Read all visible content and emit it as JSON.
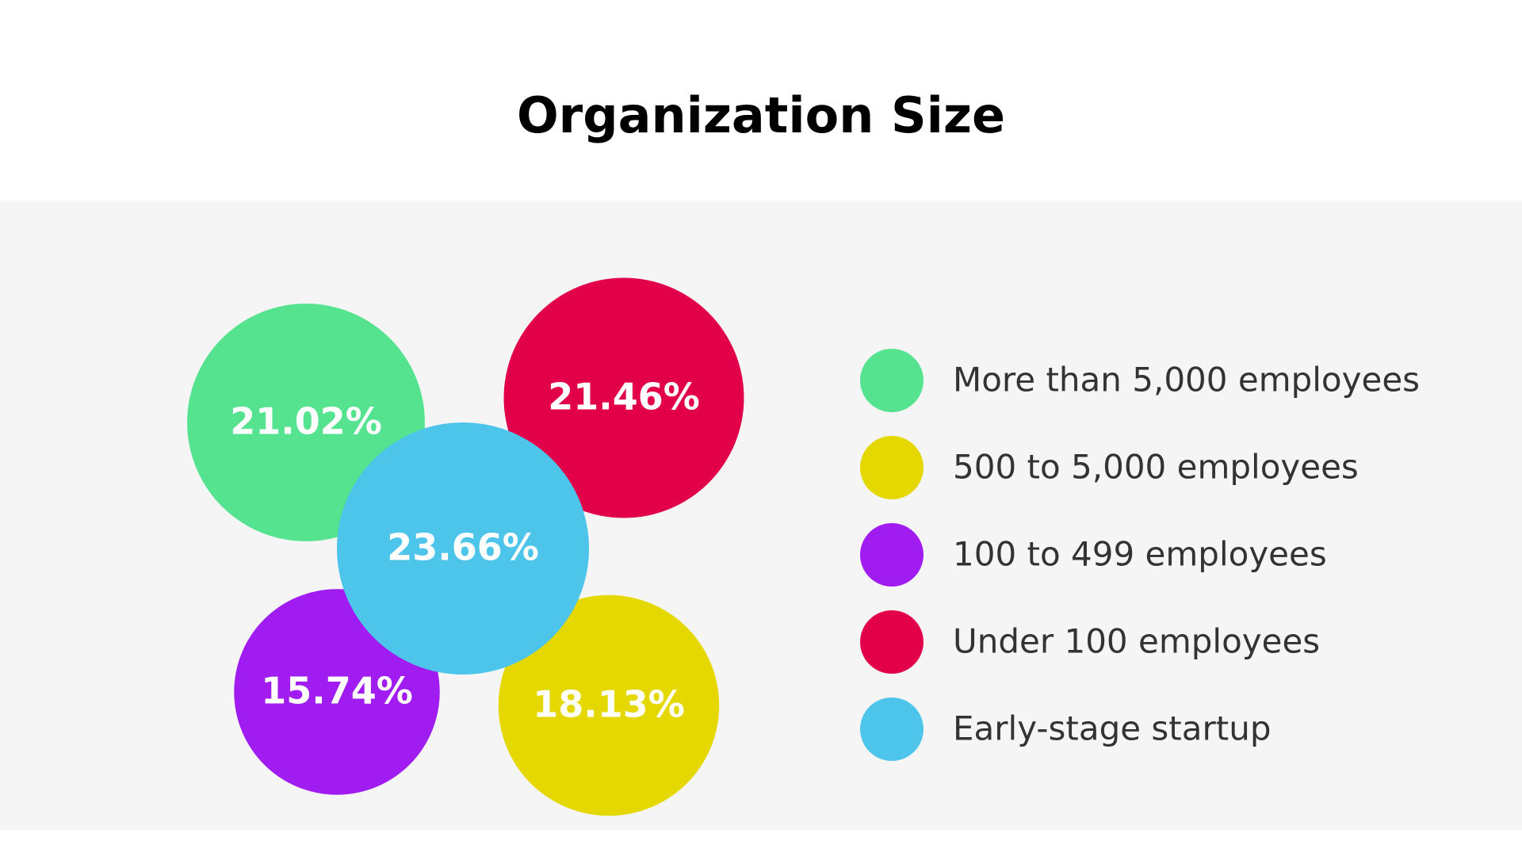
{
  "chart_data": {
    "type": "bubble",
    "title": "Organization Size",
    "categories": [
      "More than 5,000 employees",
      "500 to 5,000 employees",
      "100 to 499 employees",
      "Under 100 employees",
      "Early-stage startup"
    ],
    "values": [
      21.02,
      18.13,
      15.74,
      21.46,
      23.66
    ],
    "value_labels": [
      "21.02%",
      "18.13%",
      "15.74%",
      "21.46%",
      "23.66%"
    ],
    "colors": [
      "#55e38f",
      "#e5d800",
      "#a01cf0",
      "#e3004a",
      "#4dc5ea"
    ]
  }
}
